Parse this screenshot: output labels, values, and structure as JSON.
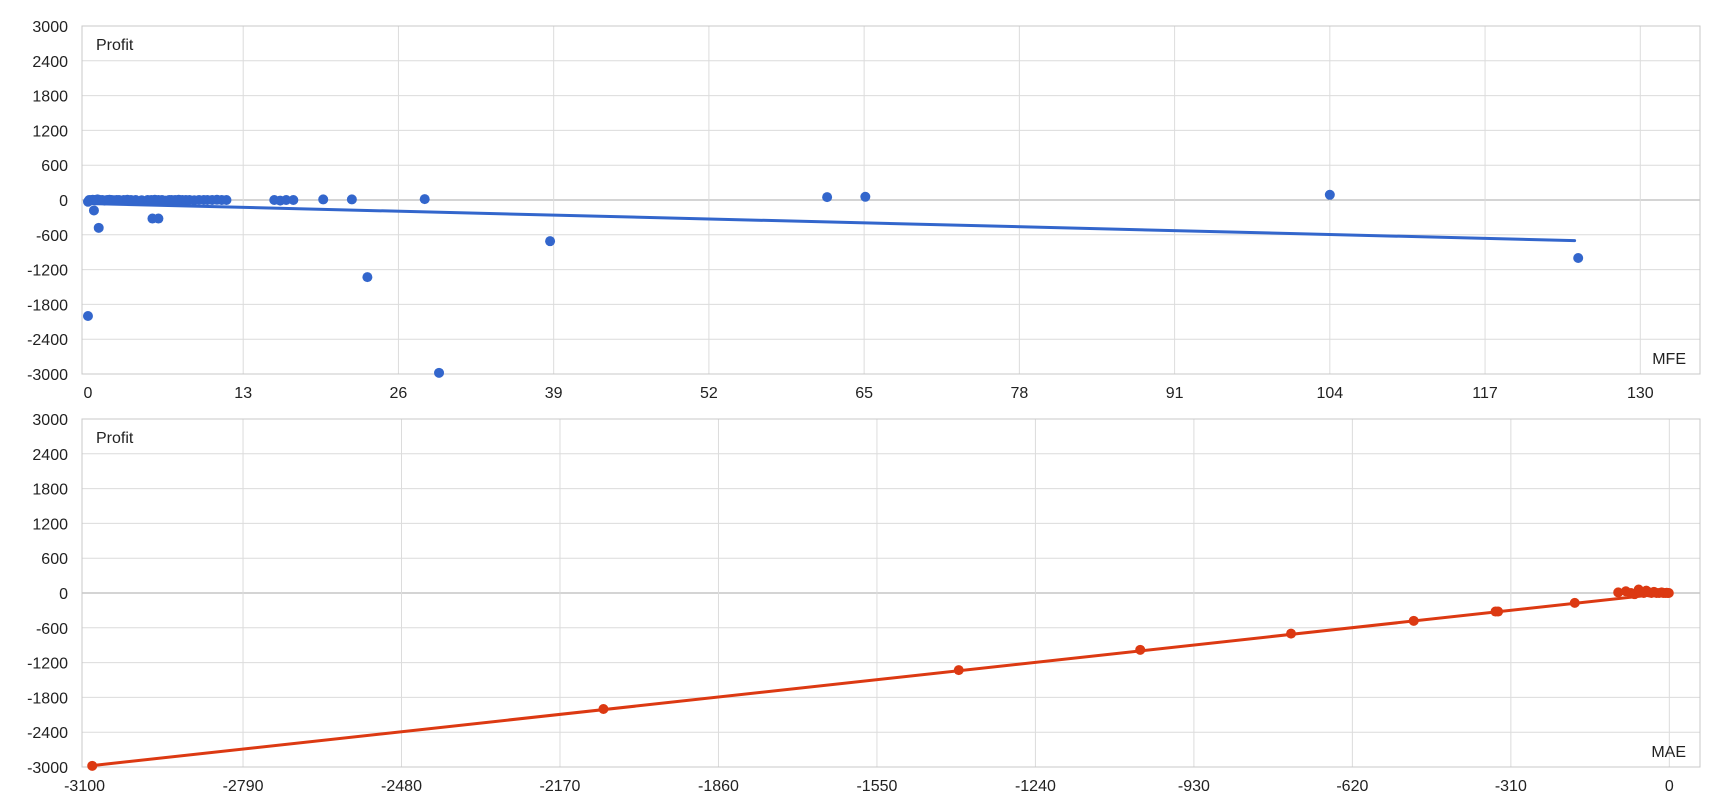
{
  "chart_data": [
    {
      "type": "scatter",
      "xlabel": "MFE",
      "ylabel": "Profit",
      "xlim": [
        -0.5,
        135
      ],
      "ylim": [
        -3000,
        3000
      ],
      "x_ticks": [
        0,
        13,
        26,
        39,
        52,
        65,
        78,
        91,
        104,
        117,
        130
      ],
      "x_tick_labels": [
        "0",
        "13",
        "26",
        "39",
        "52",
        "65",
        "78",
        "91",
        "104",
        "117",
        "130"
      ],
      "y_ticks": [
        3000,
        2400,
        1800,
        1200,
        600,
        0,
        -600,
        -1200,
        -1800,
        -2400,
        -3000
      ],
      "y_tick_labels": [
        "3000",
        "2400",
        "1800",
        "1200",
        "600",
        "0",
        "-600",
        "-1200",
        "-1800",
        "-2400",
        "-3000"
      ],
      "grid": true,
      "color": "#3366cc",
      "trendline": {
        "x": [
          0,
          124.5
        ],
        "y": [
          -60,
          -700
        ]
      },
      "points": [
        {
          "x": 0.0,
          "y": -2000
        },
        {
          "x": 0.0,
          "y": -30
        },
        {
          "x": 0.1,
          "y": 0
        },
        {
          "x": 0.2,
          "y": -10
        },
        {
          "x": 0.3,
          "y": 0
        },
        {
          "x": 0.4,
          "y": 5
        },
        {
          "x": 0.5,
          "y": 0
        },
        {
          "x": 0.6,
          "y": -5
        },
        {
          "x": 0.7,
          "y": 0
        },
        {
          "x": 0.8,
          "y": 10
        },
        {
          "x": 0.5,
          "y": -180
        },
        {
          "x": 0.9,
          "y": -480
        },
        {
          "x": 1.0,
          "y": 0
        },
        {
          "x": 1.2,
          "y": 0
        },
        {
          "x": 1.4,
          "y": -10
        },
        {
          "x": 1.6,
          "y": 0
        },
        {
          "x": 1.8,
          "y": 5
        },
        {
          "x": 2.0,
          "y": 0
        },
        {
          "x": 2.2,
          "y": -5
        },
        {
          "x": 2.4,
          "y": 0
        },
        {
          "x": 2.6,
          "y": 0
        },
        {
          "x": 3.0,
          "y": 0
        },
        {
          "x": 3.3,
          "y": 5
        },
        {
          "x": 3.6,
          "y": 0
        },
        {
          "x": 4.0,
          "y": 0
        },
        {
          "x": 4.5,
          "y": -5
        },
        {
          "x": 5.0,
          "y": 0
        },
        {
          "x": 5.3,
          "y": 0
        },
        {
          "x": 5.6,
          "y": 5
        },
        {
          "x": 5.9,
          "y": 0
        },
        {
          "x": 6.2,
          "y": 0
        },
        {
          "x": 6.5,
          "y": -10
        },
        {
          "x": 6.8,
          "y": 0
        },
        {
          "x": 5.4,
          "y": -320
        },
        {
          "x": 5.9,
          "y": -320
        },
        {
          "x": 7.0,
          "y": 0
        },
        {
          "x": 7.3,
          "y": 0
        },
        {
          "x": 7.6,
          "y": 5
        },
        {
          "x": 7.9,
          "y": 0
        },
        {
          "x": 8.2,
          "y": 0
        },
        {
          "x": 8.5,
          "y": 0
        },
        {
          "x": 8.9,
          "y": -5
        },
        {
          "x": 9.3,
          "y": 0
        },
        {
          "x": 9.7,
          "y": 0
        },
        {
          "x": 10.0,
          "y": 0
        },
        {
          "x": 10.4,
          "y": 0
        },
        {
          "x": 10.8,
          "y": 5
        },
        {
          "x": 11.2,
          "y": 0
        },
        {
          "x": 11.6,
          "y": 0
        },
        {
          "x": 15.6,
          "y": 0
        },
        {
          "x": 16.1,
          "y": -10
        },
        {
          "x": 16.6,
          "y": 0
        },
        {
          "x": 17.2,
          "y": 0
        },
        {
          "x": 19.7,
          "y": 10
        },
        {
          "x": 22.1,
          "y": 10
        },
        {
          "x": 23.4,
          "y": -1330
        },
        {
          "x": 29.4,
          "y": -2980
        },
        {
          "x": 28.2,
          "y": 15
        },
        {
          "x": 38.7,
          "y": -710
        },
        {
          "x": 61.9,
          "y": 50
        },
        {
          "x": 65.1,
          "y": 55
        },
        {
          "x": 104.0,
          "y": 90
        },
        {
          "x": 124.8,
          "y": -1000
        }
      ]
    },
    {
      "type": "scatter",
      "xlabel": "MAE",
      "ylabel": "Profit",
      "xlim": [
        -3105,
        60
      ],
      "ylim": [
        -3000,
        3000
      ],
      "x_ticks": [
        -3100,
        -2790,
        -2480,
        -2170,
        -1860,
        -1550,
        -1240,
        -930,
        -620,
        -310,
        0
      ],
      "x_tick_labels": [
        "-3100",
        "-2790",
        "-2480",
        "-2170",
        "-1860",
        "-1550",
        "-1240",
        "-930",
        "-620",
        "-310",
        "0"
      ],
      "y_ticks": [
        3000,
        2400,
        1800,
        1200,
        600,
        0,
        -600,
        -1200,
        -1800,
        -2400,
        -3000
      ],
      "y_tick_labels": [
        "3000",
        "2400",
        "1800",
        "1200",
        "600",
        "0",
        "-600",
        "-1200",
        "-1800",
        "-2400",
        "-3000"
      ],
      "grid": true,
      "color": "#dc3912",
      "trendline": {
        "x": [
          -3090,
          0
        ],
        "y": [
          -2980,
          0
        ]
      },
      "points": [
        {
          "x": -3085,
          "y": -2980
        },
        {
          "x": -2085,
          "y": -2000
        },
        {
          "x": -1390,
          "y": -1330
        },
        {
          "x": -1035,
          "y": -980
        },
        {
          "x": -740,
          "y": -700
        },
        {
          "x": -500,
          "y": -480
        },
        {
          "x": -340,
          "y": -320
        },
        {
          "x": -335,
          "y": -320
        },
        {
          "x": -185,
          "y": -170
        },
        {
          "x": -100,
          "y": 10
        },
        {
          "x": -85,
          "y": 30
        },
        {
          "x": -75,
          "y": 0
        },
        {
          "x": -68,
          "y": -20
        },
        {
          "x": -60,
          "y": 60
        },
        {
          "x": -55,
          "y": 10
        },
        {
          "x": -50,
          "y": 0
        },
        {
          "x": -45,
          "y": 40
        },
        {
          "x": -40,
          "y": 10
        },
        {
          "x": -35,
          "y": 0
        },
        {
          "x": -30,
          "y": 20
        },
        {
          "x": -25,
          "y": 0
        },
        {
          "x": -20,
          "y": 0
        },
        {
          "x": -15,
          "y": 10
        },
        {
          "x": -12,
          "y": 0
        },
        {
          "x": -8,
          "y": 0
        },
        {
          "x": -5,
          "y": 5
        },
        {
          "x": -3,
          "y": 0
        },
        {
          "x": -1,
          "y": 0
        }
      ]
    }
  ]
}
